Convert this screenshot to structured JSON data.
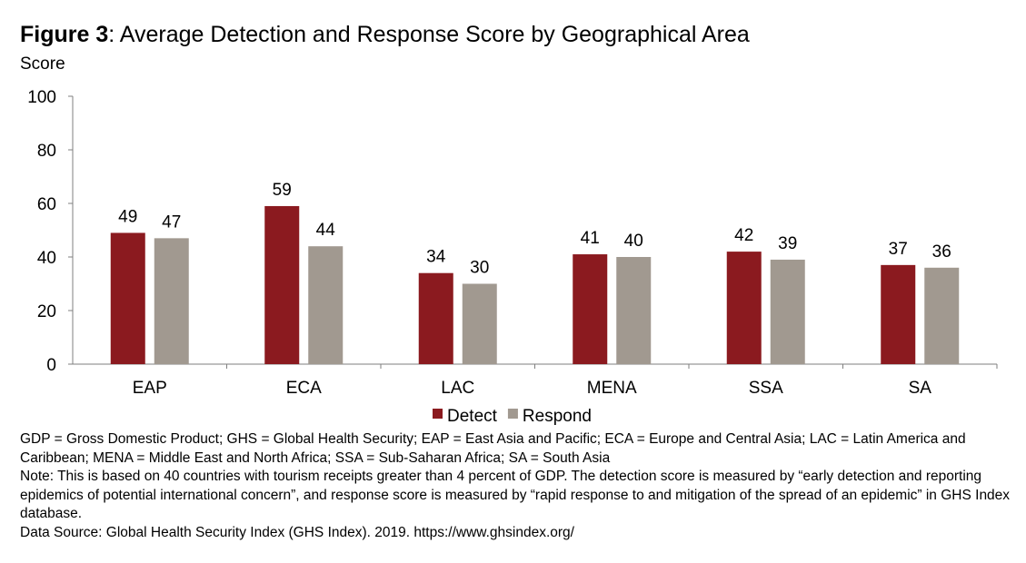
{
  "figure": {
    "label": "Figure 3",
    "title": ": Average Detection and Response Score by Geographical Area"
  },
  "chart_data": {
    "type": "bar",
    "ylabel": "Score",
    "xlabel": "",
    "ylim": [
      0,
      100
    ],
    "yticks": [
      0,
      20,
      40,
      60,
      80,
      100
    ],
    "categories": [
      "EAP",
      "ECA",
      "LAC",
      "MENA",
      "SSA",
      "SA"
    ],
    "series": [
      {
        "name": "Detect",
        "values": [
          49,
          59,
          34,
          41,
          42,
          37
        ],
        "color": "#8b1a1f"
      },
      {
        "name": "Respond",
        "values": [
          47,
          44,
          30,
          40,
          39,
          36
        ],
        "color": "#a19990"
      }
    ],
    "grid": false,
    "legend_position": "bottom-center",
    "data_labels": true
  },
  "notes": {
    "line1": "GDP = Gross Domestic Product; GHS = Global Health Security; EAP = East Asia and Pacific; ECA = Europe and Central Asia; LAC = Latin America and Caribbean; MENA = Middle East and North Africa; SSA = Sub-Saharan Africa; SA = South Asia",
    "line2": "Note: This is based on 40 countries with tourism receipts greater than 4 percent of GDP. The detection score is measured by “early detection and reporting epidemics of potential international concern”, and response score is measured by “rapid response to and mitigation of the spread of an epidemic” in GHS Index database.",
    "line3": "Data Source: Global Health Security Index (GHS Index). 2019. https://www.ghsindex.org/"
  }
}
